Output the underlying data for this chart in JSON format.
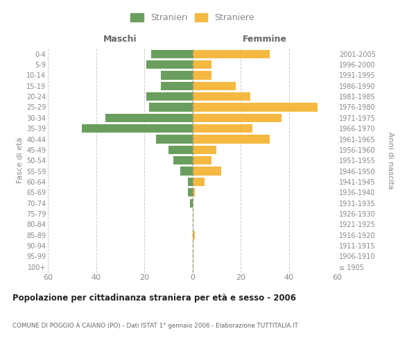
{
  "age_groups": [
    "100+",
    "95-99",
    "90-94",
    "85-89",
    "80-84",
    "75-79",
    "70-74",
    "65-69",
    "60-64",
    "55-59",
    "50-54",
    "45-49",
    "40-44",
    "35-39",
    "30-34",
    "25-29",
    "20-24",
    "15-19",
    "10-14",
    "5-9",
    "0-4"
  ],
  "birth_years": [
    "≤ 1905",
    "1906-1910",
    "1911-1915",
    "1916-1920",
    "1921-1925",
    "1926-1930",
    "1931-1935",
    "1936-1940",
    "1941-1945",
    "1946-1950",
    "1951-1955",
    "1956-1960",
    "1961-1965",
    "1966-1970",
    "1971-1975",
    "1976-1980",
    "1981-1985",
    "1986-1990",
    "1991-1995",
    "1996-2000",
    "2001-2005"
  ],
  "males": [
    0,
    0,
    0,
    0,
    0,
    0,
    1,
    2,
    2,
    5,
    8,
    10,
    15,
    46,
    36,
    18,
    19,
    13,
    13,
    19,
    17
  ],
  "females": [
    0,
    0,
    0,
    1,
    0,
    0,
    0,
    1,
    5,
    12,
    8,
    10,
    32,
    25,
    37,
    52,
    24,
    18,
    8,
    8,
    32
  ],
  "male_color": "#6a9e5e",
  "female_color": "#f5b942",
  "background_color": "#ffffff",
  "grid_color": "#cccccc",
  "title": "Popolazione per cittadinanza straniera per età e sesso - 2006",
  "subtitle": "COMUNE DI POGGIO A CAIANO (PO) - Dati ISTAT 1° gennaio 2006 - Elaborazione TUTTITALIA.IT",
  "xlabel_left": "Maschi",
  "xlabel_right": "Femmine",
  "ylabel_left": "Fasce di età",
  "ylabel_right": "Anni di nascita",
  "legend_male": "Stranieri",
  "legend_female": "Straniere",
  "xlim": 60,
  "center_line_color": "#999977",
  "tick_label_color": "#888888",
  "header_label_color": "#666666"
}
